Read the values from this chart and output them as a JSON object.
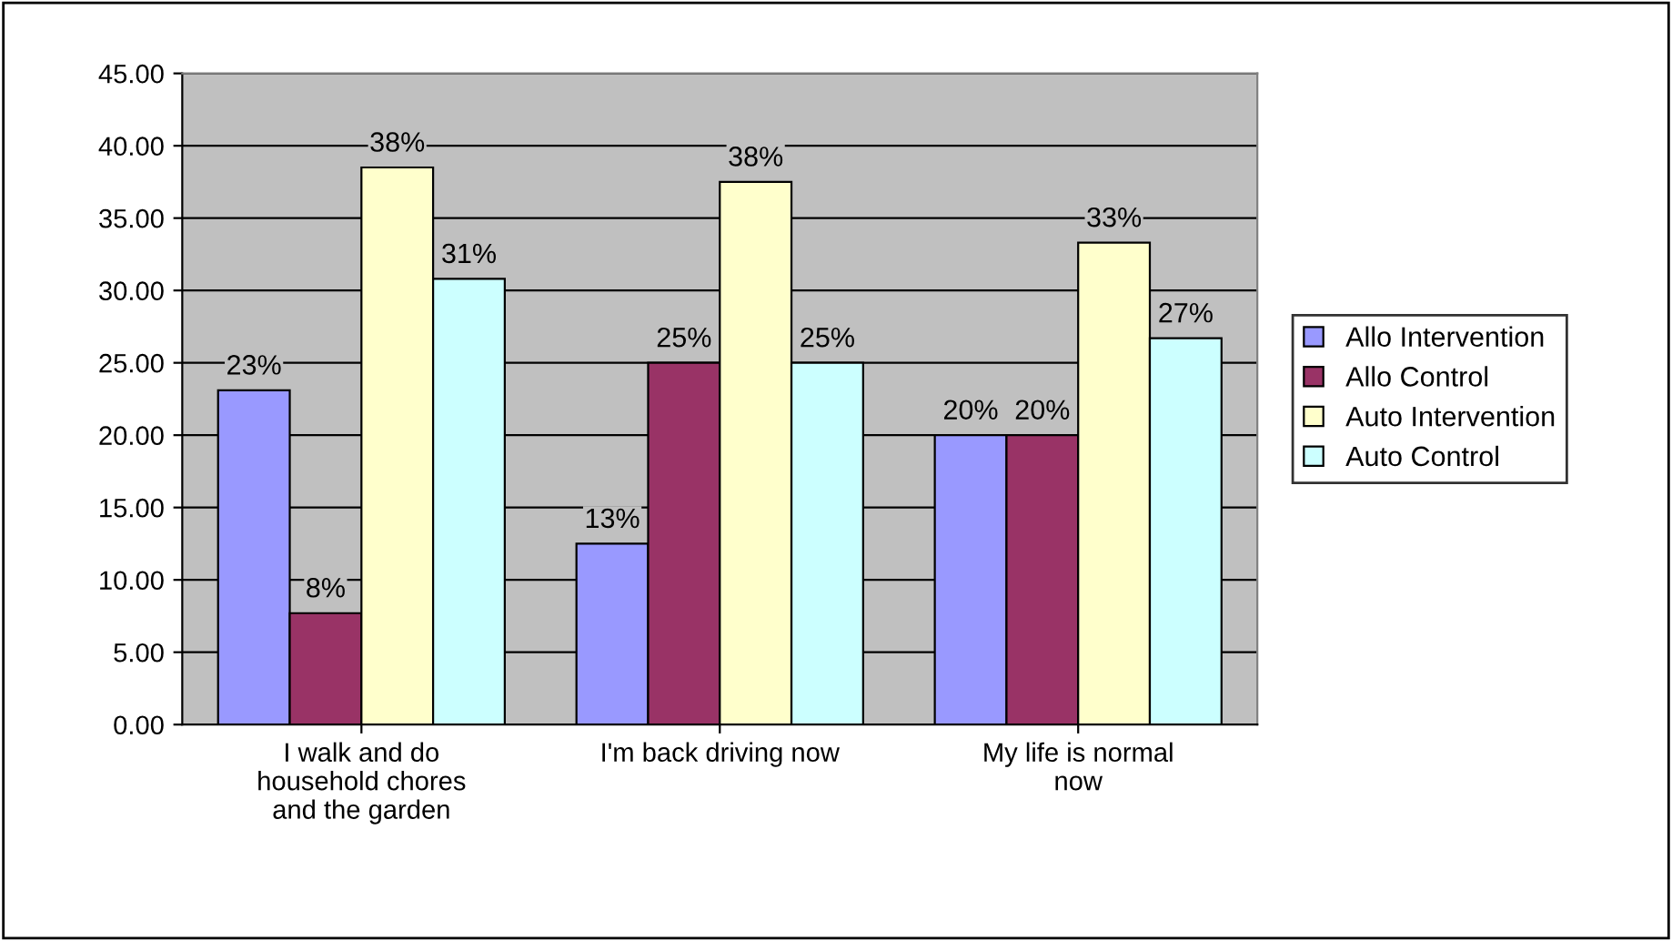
{
  "chart_data": {
    "type": "bar",
    "categories": [
      "I walk and do\nhousehold chores\nand the garden",
      "I'm back driving now",
      "My life is normal\nnow"
    ],
    "series": [
      {
        "name": "Allo Intervention",
        "color": "#9999ff",
        "values": [
          23.1,
          12.5,
          20.0
        ],
        "value_labels": [
          "23%",
          "13%",
          "20%"
        ]
      },
      {
        "name": "Allo Control",
        "color": "#993366",
        "values": [
          7.7,
          25.0,
          20.0
        ],
        "value_labels": [
          "8%",
          "25%",
          "20%"
        ]
      },
      {
        "name": "Auto Intervention",
        "color": "#ffffcc",
        "values": [
          38.5,
          37.5,
          33.3
        ],
        "value_labels": [
          "38%",
          "38%",
          "33%"
        ]
      },
      {
        "name": "Auto Control",
        "color": "#ccffff",
        "values": [
          30.8,
          25.0,
          26.7
        ],
        "value_labels": [
          "31%",
          "25%",
          "27%"
        ]
      }
    ],
    "ylim": [
      0,
      45
    ],
    "yticks": [
      {
        "value": 0,
        "label": "0.00"
      },
      {
        "value": 5,
        "label": "5.00"
      },
      {
        "value": 10,
        "label": "10.00"
      },
      {
        "value": 15,
        "label": "15.00"
      },
      {
        "value": 20,
        "label": "20.00"
      },
      {
        "value": 25,
        "label": "25.00"
      },
      {
        "value": 30,
        "label": "30.00"
      },
      {
        "value": 35,
        "label": "35.00"
      },
      {
        "value": 40,
        "label": "40.00"
      },
      {
        "value": 45,
        "label": "45.00"
      }
    ],
    "grid": "y",
    "legend": "right"
  }
}
